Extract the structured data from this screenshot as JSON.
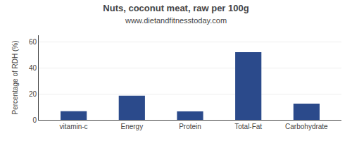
{
  "chart_data": {
    "type": "bar",
    "title": "Nuts, coconut meat, raw per 100g",
    "subtitle": "www.dietandfitnesstoday.com",
    "categories": [
      "vitamin-c",
      "Energy",
      "Protein",
      "Total-Fat",
      "Carbohydrate"
    ],
    "values": [
      6.7,
      18.5,
      6.5,
      52.0,
      12.5
    ],
    "color": "#2b4a8b",
    "ylabel": "Percentage of RDH (%)",
    "ylim": [
      0,
      65
    ],
    "yticks": [
      0,
      20,
      40,
      60
    ],
    "grid": true
  }
}
